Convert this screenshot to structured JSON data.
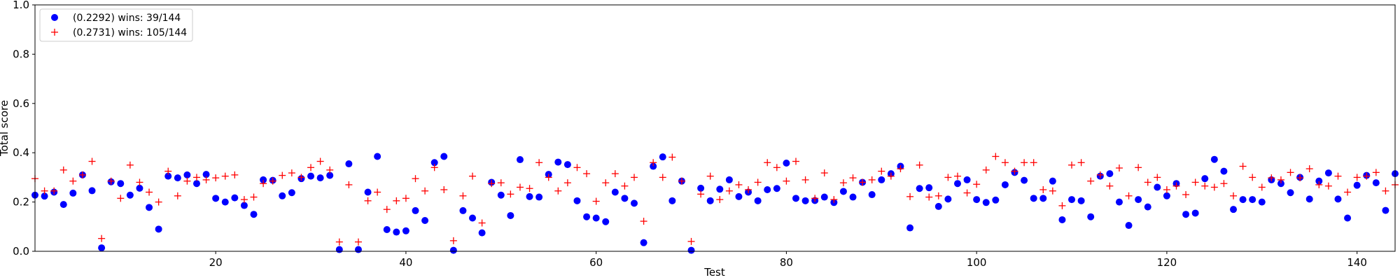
{
  "chart_data": {
    "type": "scatter",
    "title": "",
    "xlabel": "Test",
    "ylabel": "Total score",
    "xlim": [
      1,
      144
    ],
    "ylim": [
      0,
      1.0
    ],
    "xticks": [
      20,
      40,
      60,
      80,
      100,
      120,
      140
    ],
    "yticks": [
      0.0,
      0.2,
      0.4,
      0.6,
      0.8,
      1.0
    ],
    "xtick_labels": [
      "20",
      "40",
      "60",
      "80",
      "100",
      "120",
      "140"
    ],
    "ytick_labels": [
      "0.0",
      "0.2",
      "0.4",
      "0.6",
      "0.8",
      "1.0"
    ],
    "grid": false,
    "legend": "top-left",
    "x": [
      1,
      2,
      3,
      4,
      5,
      6,
      7,
      8,
      9,
      10,
      11,
      12,
      13,
      14,
      15,
      16,
      17,
      18,
      19,
      20,
      21,
      22,
      23,
      24,
      25,
      26,
      27,
      28,
      29,
      30,
      31,
      32,
      33,
      34,
      35,
      36,
      37,
      38,
      39,
      40,
      41,
      42,
      43,
      44,
      45,
      46,
      47,
      48,
      49,
      50,
      51,
      52,
      53,
      54,
      55,
      56,
      57,
      58,
      59,
      60,
      61,
      62,
      63,
      64,
      65,
      66,
      67,
      68,
      69,
      70,
      71,
      72,
      73,
      74,
      75,
      76,
      77,
      78,
      79,
      80,
      81,
      82,
      83,
      84,
      85,
      86,
      87,
      88,
      89,
      90,
      91,
      92,
      93,
      94,
      95,
      96,
      97,
      98,
      99,
      100,
      101,
      102,
      103,
      104,
      105,
      106,
      107,
      108,
      109,
      110,
      111,
      112,
      113,
      114,
      115,
      116,
      117,
      118,
      119,
      120,
      121,
      122,
      123,
      124,
      125,
      126,
      127,
      128,
      129,
      130,
      131,
      132,
      133,
      134,
      135,
      136,
      137,
      138,
      139,
      140,
      141,
      142,
      143,
      144
    ],
    "series": [
      {
        "name": "(0.2292) wins: 39/144",
        "marker": "circle",
        "color": "#0000ff",
        "values": [
          0.228,
          0.224,
          0.24,
          0.19,
          0.236,
          0.31,
          0.246,
          0.014,
          0.282,
          0.275,
          0.228,
          0.256,
          0.178,
          0.09,
          0.305,
          0.298,
          0.31,
          0.275,
          0.312,
          0.215,
          0.2,
          0.217,
          0.186,
          0.15,
          0.29,
          0.288,
          0.225,
          0.238,
          0.295,
          0.305,
          0.298,
          0.308,
          0.007,
          0.355,
          0.007,
          0.24,
          0.385,
          0.088,
          0.078,
          0.083,
          0.165,
          0.125,
          0.36,
          0.385,
          0.004,
          0.165,
          0.135,
          0.075,
          0.28,
          0.228,
          0.145,
          0.372,
          0.222,
          0.22,
          0.312,
          0.362,
          0.352,
          0.205,
          0.14,
          0.135,
          0.12,
          0.24,
          0.215,
          0.195,
          0.035,
          0.345,
          0.383,
          0.205,
          0.285,
          0.004,
          0.256,
          0.205,
          0.252,
          0.29,
          0.222,
          0.24,
          0.205,
          0.25,
          0.255,
          0.358,
          0.215,
          0.205,
          0.206,
          0.22,
          0.198,
          0.243,
          0.22,
          0.28,
          0.23,
          0.29,
          0.315,
          0.345,
          0.095,
          0.255,
          0.258,
          0.182,
          0.212,
          0.275,
          0.29,
          0.21,
          0.198,
          0.208,
          0.27,
          0.32,
          0.288,
          0.215,
          0.215,
          0.285,
          0.128,
          0.21,
          0.205,
          0.14,
          0.305,
          0.315,
          0.2,
          0.105,
          0.21,
          0.18,
          0.26,
          0.225,
          0.275,
          0.15,
          0.155,
          0.295,
          0.373,
          0.325,
          0.17,
          0.21,
          0.21,
          0.2,
          0.29,
          0.275,
          0.238,
          0.3,
          0.212,
          0.285,
          0.318,
          0.212,
          0.135,
          0.268,
          0.308,
          0.278,
          0.166,
          0.315
        ]
      },
      {
        "name": "(0.2731) wins: 105/144",
        "marker": "plus",
        "color": "#ff0000",
        "values": [
          0.295,
          0.245,
          0.245,
          0.33,
          0.285,
          0.31,
          0.365,
          0.052,
          0.285,
          0.215,
          0.35,
          0.28,
          0.24,
          0.2,
          0.325,
          0.225,
          0.285,
          0.3,
          0.29,
          0.298,
          0.305,
          0.31,
          0.21,
          0.22,
          0.275,
          0.285,
          0.308,
          0.318,
          0.3,
          0.34,
          0.365,
          0.33,
          0.038,
          0.27,
          0.038,
          0.205,
          0.24,
          0.17,
          0.205,
          0.215,
          0.295,
          0.245,
          0.34,
          0.25,
          0.043,
          0.225,
          0.305,
          0.115,
          0.275,
          0.278,
          0.232,
          0.26,
          0.255,
          0.36,
          0.3,
          0.245,
          0.278,
          0.34,
          0.315,
          0.203,
          0.278,
          0.315,
          0.265,
          0.3,
          0.122,
          0.36,
          0.3,
          0.382,
          0.285,
          0.04,
          0.232,
          0.305,
          0.21,
          0.245,
          0.27,
          0.25,
          0.28,
          0.36,
          0.34,
          0.285,
          0.365,
          0.29,
          0.215,
          0.318,
          0.21,
          0.278,
          0.298,
          0.28,
          0.29,
          0.325,
          0.305,
          0.335,
          0.222,
          0.35,
          0.22,
          0.225,
          0.3,
          0.305,
          0.237,
          0.272,
          0.33,
          0.385,
          0.36,
          0.325,
          0.36,
          0.36,
          0.25,
          0.245,
          0.185,
          0.35,
          0.36,
          0.285,
          0.31,
          0.265,
          0.338,
          0.225,
          0.34,
          0.28,
          0.3,
          0.25,
          0.265,
          0.23,
          0.28,
          0.265,
          0.26,
          0.275,
          0.225,
          0.345,
          0.3,
          0.26,
          0.298,
          0.29,
          0.32,
          0.298,
          0.335,
          0.27,
          0.265,
          0.305,
          0.24,
          0.3,
          0.305,
          0.32,
          0.245,
          0.27
        ]
      }
    ]
  }
}
